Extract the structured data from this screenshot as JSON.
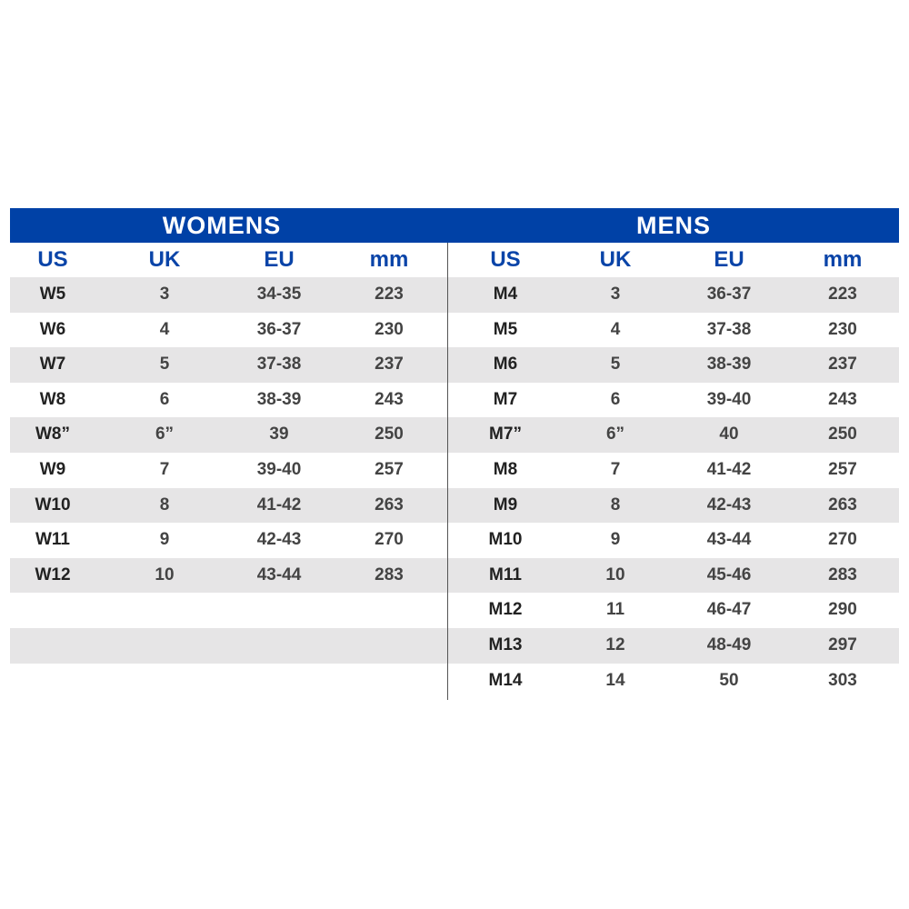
{
  "colors": {
    "header_bar": "#0041a6",
    "header_text": "#0a44a8",
    "stripe": "#e6e5e6"
  },
  "womens": {
    "title": "WOMENS",
    "columns": [
      "US",
      "UK",
      "EU",
      "mm"
    ],
    "rows": [
      [
        "W5",
        "3",
        "34-35",
        "223"
      ],
      [
        "W6",
        "4",
        "36-37",
        "230"
      ],
      [
        "W7",
        "5",
        "37-38",
        "237"
      ],
      [
        "W8",
        "6",
        "38-39",
        "243"
      ],
      [
        "W8”",
        "6”",
        "39",
        "250"
      ],
      [
        "W9",
        "7",
        "39-40",
        "257"
      ],
      [
        "W10",
        "8",
        "41-42",
        "263"
      ],
      [
        "W11",
        "9",
        "42-43",
        "270"
      ],
      [
        "W12",
        "10",
        "43-44",
        "283"
      ]
    ]
  },
  "mens": {
    "title": "MENS",
    "columns": [
      "US",
      "UK",
      "EU",
      "mm"
    ],
    "rows": [
      [
        "M4",
        "3",
        "36-37",
        "223"
      ],
      [
        "M5",
        "4",
        "37-38",
        "230"
      ],
      [
        "M6",
        "5",
        "38-39",
        "237"
      ],
      [
        "M7",
        "6",
        "39-40",
        "243"
      ],
      [
        "M7”",
        "6”",
        "40",
        "250"
      ],
      [
        "M8",
        "7",
        "41-42",
        "257"
      ],
      [
        "M9",
        "8",
        "42-43",
        "263"
      ],
      [
        "M10",
        "9",
        "43-44",
        "270"
      ],
      [
        "M11",
        "10",
        "45-46",
        "283"
      ],
      [
        "M12",
        "11",
        "46-47",
        "290"
      ],
      [
        "M13",
        "12",
        "48-49",
        "297"
      ],
      [
        "M14",
        "14",
        "50",
        "303"
      ]
    ]
  }
}
